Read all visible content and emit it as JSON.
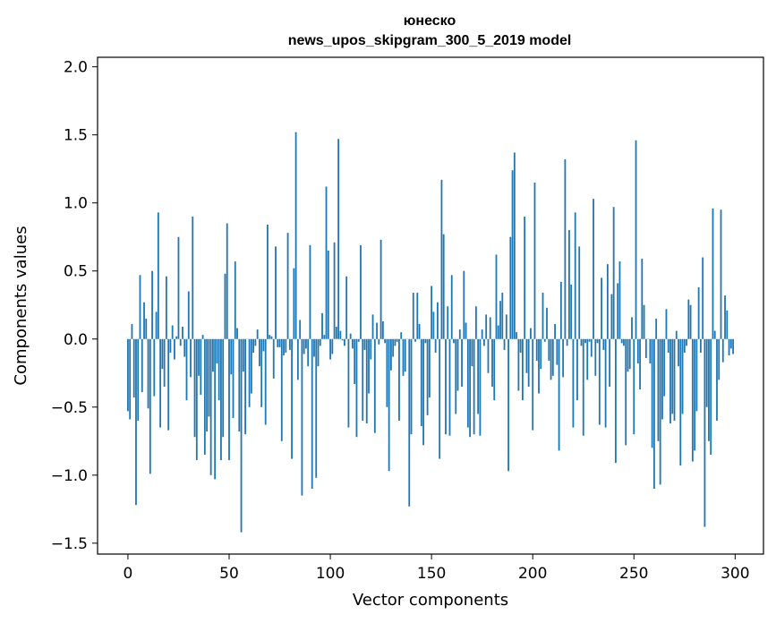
{
  "chart_data": {
    "type": "bar",
    "title": "юнеско",
    "subtitle": "news_upos_skipgram_300_5_2019 model",
    "xlabel": "Vector components",
    "ylabel": "Components values",
    "xlim": [
      -15,
      314
    ],
    "ylim": [
      -1.58,
      2.07
    ],
    "xticks": [
      0,
      50,
      100,
      150,
      200,
      250,
      300
    ],
    "xtick_labels": [
      "0",
      "50",
      "100",
      "150",
      "200",
      "250",
      "300"
    ],
    "yticks": [
      -1.5,
      -1.0,
      -0.5,
      0.0,
      0.5,
      1.0,
      1.5,
      2.0
    ],
    "ytick_labels": [
      "−1.5",
      "−1.0",
      "−0.5",
      "0.0",
      "0.5",
      "1.0",
      "1.5",
      "2.0"
    ],
    "bar_color": "#1f77b4",
    "values": [
      -0.53,
      -0.59,
      0.11,
      -0.43,
      -1.22,
      -0.6,
      0.47,
      -0.39,
      0.27,
      0.15,
      -0.51,
      -0.99,
      0.5,
      -0.42,
      0.2,
      0.93,
      -0.65,
      -0.22,
      -0.35,
      0.46,
      -0.67,
      -0.1,
      0.1,
      -0.15,
      0.02,
      0.75,
      -0.05,
      0.09,
      -0.13,
      -0.45,
      0.35,
      -0.28,
      0.9,
      -0.72,
      -0.89,
      -0.27,
      -0.41,
      0.03,
      -0.85,
      -0.68,
      -0.57,
      -1.0,
      -0.24,
      -1.03,
      -0.18,
      -0.45,
      -0.89,
      -0.72,
      0.48,
      0.85,
      -0.89,
      -0.26,
      -0.58,
      0.57,
      0.08,
      -0.68,
      -1.42,
      -0.24,
      -0.7,
      0.0,
      -0.5,
      -0.4,
      -0.1,
      -0.05,
      0.07,
      -0.2,
      -0.5,
      -0.09,
      -0.63,
      0.84,
      0.03,
      0.02,
      -0.29,
      0.68,
      -0.06,
      -0.06,
      -0.75,
      -0.12,
      -0.1,
      0.78,
      -0.08,
      -0.88,
      0.52,
      1.52,
      -0.3,
      0.14,
      -1.15,
      -0.11,
      -0.07,
      -0.2,
      0.69,
      -1.1,
      -0.13,
      -1.02,
      -0.2,
      -0.05,
      0.19,
      0.03,
      1.12,
      0.65,
      -0.15,
      -0.11,
      0.71,
      0.09,
      1.47,
      0.06,
      -0.01,
      -0.05,
      0.46,
      -0.65,
      0.04,
      -0.07,
      -0.33,
      -0.72,
      -0.02,
      0.69,
      -0.6,
      -0.08,
      -0.62,
      -0.4,
      -0.15,
      0.18,
      -0.69,
      0.12,
      -0.04,
      0.73,
      0.13,
      -0.03,
      -0.5,
      -0.97,
      -0.23,
      -0.13,
      -0.05,
      -0.02,
      -0.6,
      0.05,
      -0.27,
      -0.24,
      0.0,
      -1.23,
      -0.7,
      0.34,
      -0.02,
      0.34,
      0.11,
      -0.64,
      -0.78,
      -0.03,
      -0.56,
      -0.43,
      0.39,
      0.2,
      -0.1,
      0.27,
      -0.88,
      1.17,
      0.77,
      -0.7,
      0.24,
      -0.71,
      0.47,
      -0.03,
      -0.55,
      -0.38,
      0.07,
      -0.35,
      0.5,
      0.12,
      -0.65,
      -0.72,
      -0.2,
      -0.7,
      0.24,
      -0.55,
      -0.71,
      0.07,
      -0.05,
      0.18,
      -0.25,
      0.16,
      -0.35,
      -0.45,
      0.62,
      0.1,
      0.28,
      0.34,
      -0.08,
      0.18,
      -0.97,
      0.75,
      1.24,
      1.37,
      0.05,
      -0.38,
      -0.1,
      -0.45,
      0.9,
      -0.25,
      -0.35,
      0.08,
      -0.67,
      1.15,
      -0.16,
      -0.4,
      -0.22,
      0.34,
      -0.02,
      0.23,
      -0.16,
      -0.3,
      -0.27,
      0.11,
      -0.19,
      -0.82,
      0.42,
      -0.28,
      1.32,
      -0.05,
      0.8,
      0.4,
      -0.65,
      0.93,
      -0.45,
      0.68,
      -0.05,
      -0.71,
      -0.03,
      -0.3,
      -0.02,
      -0.13,
      1.03,
      -0.27,
      -0.03,
      -0.63,
      0.45,
      -0.08,
      -0.65,
      0.55,
      -0.35,
      0.33,
      0.97,
      -0.91,
      0.41,
      0.57,
      -0.03,
      -0.05,
      -0.78,
      -0.24,
      -0.22,
      0.16,
      -0.7,
      1.46,
      -0.18,
      -0.37,
      0.59,
      0.25,
      -0.14,
      0.0,
      -0.18,
      -0.8,
      -1.1,
      0.15,
      -0.75,
      -1.07,
      -0.59,
      -0.42,
      0.22,
      -0.1,
      -0.62,
      -0.55,
      -0.6,
      0.06,
      -0.2,
      -0.93,
      -0.55,
      -0.1,
      -0.05,
      0.29,
      0.25,
      -0.9,
      -0.82,
      -0.53,
      0.38,
      -0.1,
      0.6,
      -1.38,
      -0.5,
      -0.75,
      -0.85,
      0.96,
      0.06,
      -0.6,
      -0.3,
      0.95,
      -0.17,
      0.32,
      0.21,
      -0.12,
      -0.07,
      -0.11
    ]
  }
}
